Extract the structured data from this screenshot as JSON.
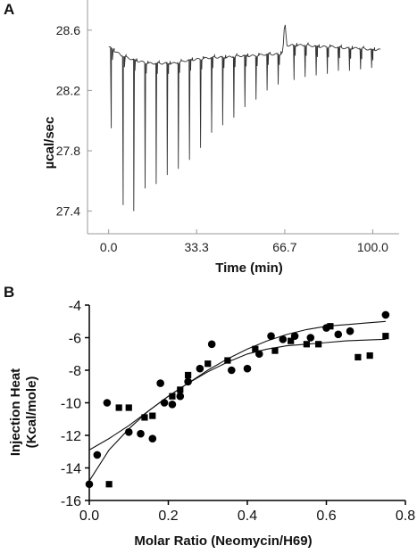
{
  "chart_data": [
    {
      "panel": "A",
      "type": "line",
      "xlabel": "Time (min)",
      "ylabel": "µcal/sec",
      "xlim": [
        -8,
        110
      ],
      "ylim": [
        27.25,
        28.8
      ],
      "xticks": [
        "0.0",
        "33.3",
        "66.7",
        "100.0"
      ],
      "xtick_values": [
        0,
        33.3,
        66.7,
        100.0
      ],
      "yticks": [
        "27.4",
        "27.8",
        "28.2",
        "28.6"
      ],
      "ytick_values": [
        27.4,
        27.8,
        28.2,
        28.6
      ],
      "baseline": {
        "x": [
          0,
          5,
          10,
          15,
          20,
          25,
          30,
          35,
          40,
          45,
          50,
          55,
          60,
          65,
          66,
          66.7,
          67.5,
          70,
          75,
          80,
          85,
          90,
          95,
          100,
          103
        ],
        "y": [
          28.49,
          28.43,
          28.4,
          28.38,
          28.38,
          28.38,
          28.4,
          28.41,
          28.42,
          28.42,
          28.43,
          28.43,
          28.44,
          28.44,
          28.46,
          28.66,
          28.5,
          28.5,
          28.5,
          28.49,
          28.49,
          28.48,
          28.48,
          28.47,
          28.47
        ]
      },
      "injection_peaks": [
        {
          "x": 1.0,
          "y": 27.95
        },
        {
          "x": 5.5,
          "y": 27.44
        },
        {
          "x": 9.5,
          "y": 27.4
        },
        {
          "x": 13.8,
          "y": 27.55
        },
        {
          "x": 18.0,
          "y": 27.58
        },
        {
          "x": 22.2,
          "y": 27.64
        },
        {
          "x": 26.4,
          "y": 27.68
        },
        {
          "x": 30.6,
          "y": 27.74
        },
        {
          "x": 34.8,
          "y": 27.82
        },
        {
          "x": 39.0,
          "y": 27.92
        },
        {
          "x": 43.2,
          "y": 27.97
        },
        {
          "x": 47.4,
          "y": 28.02
        },
        {
          "x": 51.6,
          "y": 28.09
        },
        {
          "x": 55.8,
          "y": 28.14
        },
        {
          "x": 60.0,
          "y": 28.2
        },
        {
          "x": 64.2,
          "y": 28.24
        },
        {
          "x": 70.2,
          "y": 28.27
        },
        {
          "x": 74.4,
          "y": 28.29
        },
        {
          "x": 78.6,
          "y": 28.3
        },
        {
          "x": 82.8,
          "y": 28.31
        },
        {
          "x": 87.0,
          "y": 28.33
        },
        {
          "x": 91.2,
          "y": 28.33
        },
        {
          "x": 95.4,
          "y": 28.34
        },
        {
          "x": 99.6,
          "y": 28.35
        }
      ],
      "grid": false
    },
    {
      "panel": "B",
      "type": "scatter",
      "xlabel": "Molar Ratio (Neomycin/H69)",
      "ylabel": "Injection Heat (Kcal/mole)",
      "ylabel_lines": [
        "Injection Heat",
        "(Kcal/mole)"
      ],
      "xlim": [
        0.0,
        0.8
      ],
      "ylim": [
        -16,
        -4
      ],
      "xticks": [
        "0.0",
        "0.2",
        "0.4",
        "0.6",
        "0.8"
      ],
      "xtick_values": [
        0.0,
        0.2,
        0.4,
        0.6,
        0.8
      ],
      "yticks": [
        "-4",
        "-6",
        "-8",
        "-10",
        "-12",
        "-14",
        "-16"
      ],
      "ytick_values": [
        -4,
        -6,
        -8,
        -10,
        -12,
        -14,
        -16
      ],
      "series": [
        {
          "marker": "circle",
          "x": [
            0.0,
            0.02,
            0.045,
            0.1,
            0.13,
            0.16,
            0.18,
            0.19,
            0.21,
            0.23,
            0.25,
            0.28,
            0.31,
            0.36,
            0.4,
            0.43,
            0.46,
            0.49,
            0.52,
            0.56,
            0.6,
            0.63,
            0.66,
            0.75
          ],
          "y": [
            -15.0,
            -13.2,
            -10.0,
            -11.8,
            -11.9,
            -12.2,
            -8.8,
            -10.0,
            -10.1,
            -9.6,
            -8.7,
            -7.9,
            -6.4,
            -8.0,
            -7.9,
            -7.0,
            -5.9,
            -6.1,
            -5.9,
            -6.0,
            -5.4,
            -5.8,
            -5.6,
            -4.6
          ]
        },
        {
          "marker": "square",
          "x": [
            0.05,
            0.075,
            0.1,
            0.14,
            0.16,
            0.21,
            0.23,
            0.25,
            0.3,
            0.35,
            0.42,
            0.47,
            0.51,
            0.55,
            0.58,
            0.61,
            0.68,
            0.71,
            0.75
          ],
          "y": [
            -15.0,
            -10.3,
            -10.3,
            -10.9,
            -10.8,
            -9.6,
            -9.2,
            -8.3,
            -7.6,
            -7.4,
            -6.7,
            -6.8,
            -6.2,
            -6.4,
            -6.4,
            -5.3,
            -7.2,
            -7.1,
            -5.9
          ]
        }
      ],
      "fit_curves": [
        {
          "x": [
            0.0,
            0.05,
            0.1,
            0.15,
            0.2,
            0.25,
            0.3,
            0.35,
            0.4,
            0.45,
            0.5,
            0.55,
            0.6,
            0.65,
            0.7,
            0.75
          ],
          "y": [
            -14.8,
            -12.9,
            -11.6,
            -10.5,
            -9.6,
            -8.8,
            -8.0,
            -7.3,
            -6.7,
            -6.2,
            -5.8,
            -5.5,
            -5.3,
            -5.2,
            -5.1,
            -5.0
          ]
        },
        {
          "x": [
            0.0,
            0.05,
            0.1,
            0.15,
            0.2,
            0.25,
            0.3,
            0.35,
            0.4,
            0.45,
            0.5,
            0.55,
            0.6,
            0.65,
            0.7,
            0.75
          ],
          "y": [
            -12.9,
            -12.2,
            -11.4,
            -10.5,
            -9.6,
            -8.8,
            -8.1,
            -7.5,
            -7.0,
            -6.7,
            -6.5,
            -6.4,
            -6.3,
            -6.2,
            -6.15,
            -6.1
          ]
        }
      ],
      "grid": false
    }
  ]
}
